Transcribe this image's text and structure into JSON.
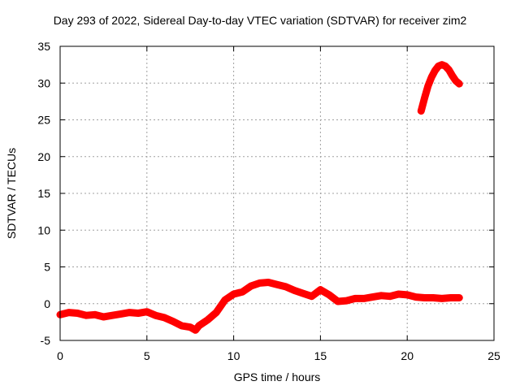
{
  "chart_data": {
    "type": "line",
    "title": "Day 293 of 2022, Sidereal Day-to-day VTEC variation (SDTVAR) for receiver zim2",
    "xlabel": "GPS time / hours",
    "ylabel": "SDTVAR / TECUs",
    "xlim": [
      0,
      25
    ],
    "ylim": [
      -5,
      35
    ],
    "xticks": [
      0,
      5,
      10,
      15,
      20,
      25
    ],
    "yticks": [
      -5,
      0,
      5,
      10,
      15,
      20,
      25,
      30,
      35
    ],
    "grid": true,
    "series": [
      {
        "name": "SDTVAR",
        "color": "#ff0000",
        "x": [
          0,
          0.5,
          1.0,
          1.5,
          2.0,
          2.5,
          3.0,
          3.5,
          4.0,
          4.5,
          5.0,
          5.5,
          6.0,
          6.5,
          7.0,
          7.5,
          7.8,
          8.0,
          8.5,
          9.0,
          9.5,
          10.0,
          10.5,
          11.0,
          11.5,
          12.0,
          12.5,
          13.0,
          13.5,
          14.0,
          14.5,
          15.0,
          15.5,
          16.0,
          16.5,
          17.0,
          17.5,
          18.0,
          18.5,
          19.0,
          19.5,
          20.0,
          20.5,
          21.0,
          21.5,
          22.0,
          22.5,
          23.0
        ],
        "y": [
          -1.5,
          -1.2,
          -1.3,
          -1.6,
          -1.5,
          -1.8,
          -1.6,
          -1.4,
          -1.2,
          -1.3,
          -1.1,
          -1.6,
          -1.9,
          -2.4,
          -3.0,
          -3.2,
          -3.6,
          -3.0,
          -2.2,
          -1.2,
          0.5,
          1.3,
          1.6,
          2.4,
          2.8,
          2.9,
          2.6,
          2.3,
          1.8,
          1.4,
          1.0,
          1.9,
          1.2,
          0.3,
          0.4,
          0.7,
          0.7,
          0.9,
          1.1,
          1.0,
          1.3,
          1.2,
          0.9,
          0.8,
          0.8,
          0.7,
          0.8,
          0.8
        ]
      },
      {
        "name": "SDTVAR late segment",
        "color": "#ff0000",
        "x": [
          20.8,
          21.0,
          21.2,
          21.4,
          21.6,
          21.8,
          22.0,
          22.2,
          22.4,
          22.6,
          22.8,
          23.0
        ],
        "y": [
          26.2,
          28.0,
          29.6,
          30.8,
          31.7,
          32.3,
          32.5,
          32.3,
          31.8,
          31.0,
          30.3,
          29.9
        ]
      }
    ]
  }
}
